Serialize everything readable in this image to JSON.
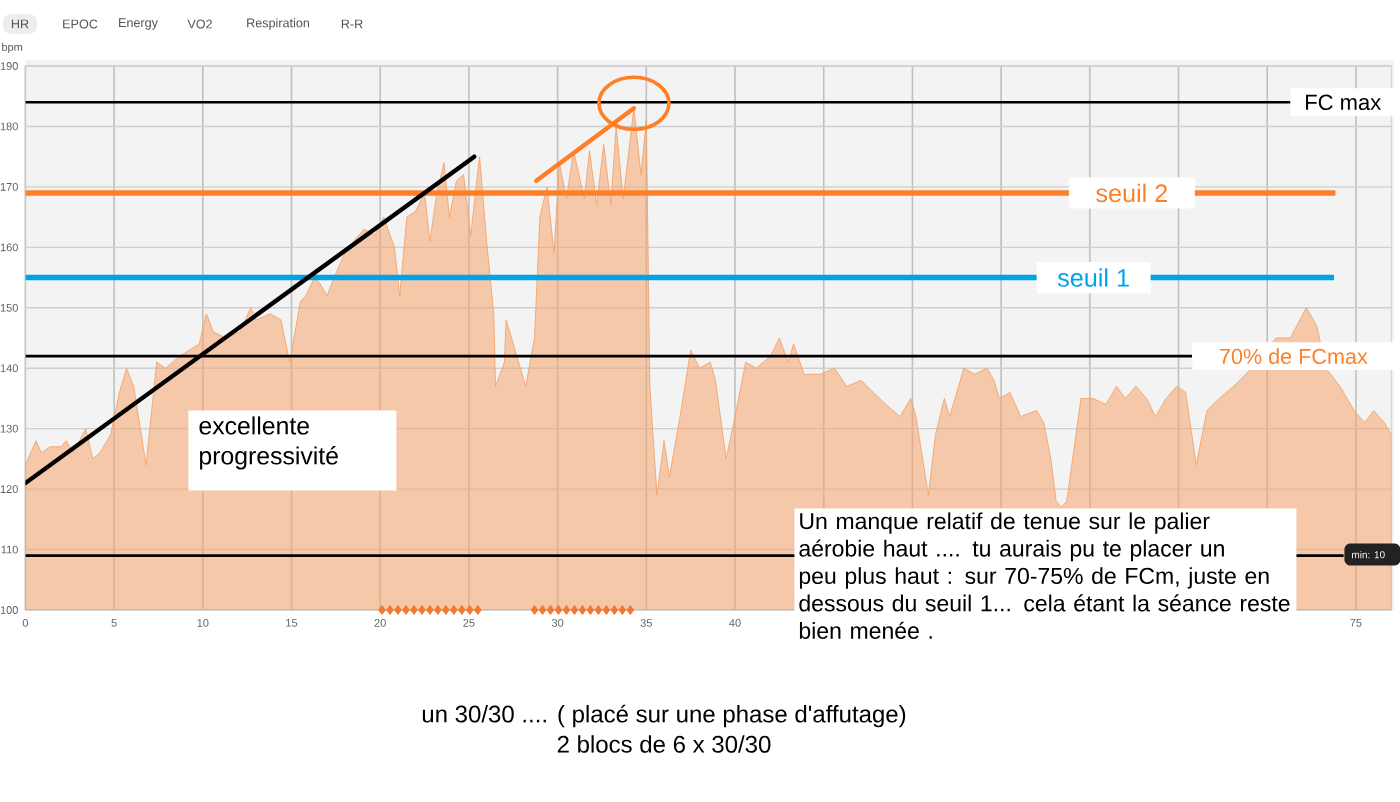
{
  "chart_data": {
    "type": "area",
    "ylabel": "bpm",
    "series": [
      {
        "color": "#f4a46c",
        "x": [
          0.0,
          0.6,
          0.9,
          1.4,
          2.0,
          2.3,
          2.7,
          3.4,
          3.8,
          4.2,
          4.8,
          5.3,
          5.7,
          6.1,
          6.8,
          7.4,
          7.9,
          8.7,
          9.8,
          10.2,
          10.6,
          11.3,
          12.1,
          12.7,
          13.0,
          13.8,
          14.4,
          14.9,
          15.5,
          15.8,
          16.3,
          16.6,
          17.0,
          17.4,
          18.0,
          18.5,
          19.1,
          19.7,
          20.2,
          20.8,
          21.1,
          21.5,
          22.0,
          22.5,
          22.8,
          23.2,
          23.6,
          23.9,
          24.3,
          24.7,
          25.1,
          25.6,
          26.0,
          26.4,
          26.5,
          27.0,
          27.1,
          27.5,
          28.2,
          28.7,
          29.0,
          29.4,
          29.8,
          30.1,
          30.5,
          30.9,
          31.5,
          31.8,
          32.2,
          32.6,
          33.0,
          33.3,
          33.7,
          34.3,
          34.7,
          35.0,
          35.2,
          35.6,
          36.0,
          36.3,
          36.9,
          37.5,
          38.0,
          38.6,
          38.9,
          39.5,
          40.0,
          40.6,
          41.2,
          42.0,
          42.5,
          43.0,
          43.3,
          43.9,
          44.8,
          45.6,
          46.3,
          47.1,
          47.8,
          48.5,
          49.3,
          49.9,
          50.2,
          50.9,
          51.3,
          51.8,
          52.1,
          52.9,
          53.5,
          54.2,
          54.6,
          54.9,
          55.5,
          56.1,
          57.0,
          57.4,
          57.8,
          58.1,
          58.4,
          58.7,
          59.5,
          60.2,
          60.9,
          61.5,
          62.0,
          62.6,
          63.2,
          63.7,
          64.3,
          64.9,
          65.4,
          66.0,
          66.6,
          67.3,
          68.1,
          68.8,
          70.5,
          71.3,
          72.2,
          72.8,
          73.3,
          74.1,
          74.9,
          75.5,
          76.0,
          76.6,
          77.0
        ],
        "values": [
          124,
          128,
          126,
          127,
          127,
          128,
          126,
          130,
          125,
          126,
          129,
          136,
          140,
          137,
          124,
          141,
          140,
          142,
          144,
          149,
          146,
          145,
          146,
          150,
          148,
          149,
          148,
          141,
          151,
          152,
          155,
          154,
          152,
          155,
          159,
          161,
          163,
          162,
          165,
          160,
          152,
          165,
          166,
          169,
          161,
          169,
          174,
          165,
          171,
          172,
          162,
          175,
          161,
          149,
          137,
          141,
          148,
          144,
          137,
          145,
          165,
          170,
          159,
          174,
          168,
          176,
          168,
          176,
          167,
          177,
          167,
          180,
          168,
          183,
          172,
          181,
          137,
          119,
          128,
          122,
          132,
          143,
          140,
          141,
          138,
          125,
          132,
          141,
          140,
          142,
          145,
          141,
          144,
          139,
          139,
          140,
          137,
          138,
          136,
          134,
          132,
          135,
          132,
          119,
          129,
          135,
          132,
          140,
          139,
          140,
          138,
          135,
          136,
          132,
          133,
          131,
          125,
          118,
          117,
          118,
          135,
          135,
          134,
          137,
          135,
          137,
          135,
          132,
          135,
          137,
          136,
          124,
          133,
          135,
          137,
          139,
          145,
          145,
          150,
          147,
          140,
          137,
          133,
          131,
          133,
          131,
          129
        ]
      },
      {
        "type": "line",
        "color": "#000000",
        "x": [
          0,
          25.3
        ],
        "values": [
          121,
          175
        ]
      },
      {
        "type": "line",
        "color": "#ff7f27",
        "x": [
          28.8,
          34.3
        ],
        "values": [
          171,
          183
        ]
      },
      {
        "type": "scatter",
        "color": "#f07830",
        "marker": "diamond",
        "x": [
          20.1,
          20.55,
          21.0,
          21.45,
          21.9,
          22.35,
          22.8,
          23.25,
          23.7,
          24.15,
          24.6,
          25.05,
          25.5,
          28.7,
          29.15,
          29.6,
          30.05,
          30.5,
          30.95,
          31.4,
          31.85,
          32.3,
          32.75,
          33.2,
          33.65,
          34.1
        ],
        "values": [
          100,
          100,
          100,
          100,
          100,
          100,
          100,
          100,
          100,
          100,
          100,
          100,
          100,
          100,
          100,
          100,
          100,
          100,
          100,
          100,
          100,
          100,
          100,
          100,
          100,
          100
        ]
      }
    ],
    "xlim": [
      0,
      77
    ],
    "ylim": [
      100,
      190
    ],
    "xticks": [
      0,
      5,
      10,
      15,
      20,
      25,
      30,
      35,
      40,
      {
        "value": 45,
        "label": null
      },
      {
        "value": 50,
        "label": null
      },
      {
        "value": 55,
        "label": null
      },
      {
        "value": 60,
        "label": null
      },
      {
        "value": 65,
        "label": null
      },
      {
        "value": 70,
        "label": null
      },
      75
    ],
    "yticks": [
      100,
      110,
      120,
      130,
      140,
      150,
      160,
      170,
      180,
      190
    ],
    "grid": true,
    "ref_lines": [
      {
        "axis": "y",
        "value": 184,
        "label": "FC max",
        "color": "#000000"
      },
      {
        "axis": "y",
        "value": 169,
        "label": "seuil 2",
        "color": "#ff7f27"
      },
      {
        "axis": "y",
        "value": 155,
        "label": "seuil 1",
        "color": "#00a2e8"
      },
      {
        "axis": "y",
        "value": 142,
        "label": "70% de FCmax",
        "color": "#000000"
      },
      {
        "axis": "y",
        "value": 109,
        "color": "#000000"
      }
    ],
    "annotations": [
      "HR",
      "EPOC",
      "Energy",
      "VO2",
      "Respiration",
      "R-R",
      "excellente progressivité",
      "Un manque relatif de tenue sur le palier aérobie haut .... tu aurais pu te placer un peu plus haut : sur 70-75% de FCm, juste en dessous du seuil 1... cela étant la séance reste bien menée .",
      "un 30/30 .... ( placé sur une phase d'affutage)",
      "2 blocs de 6 x 30/30",
      "min: 10"
    ]
  }
}
